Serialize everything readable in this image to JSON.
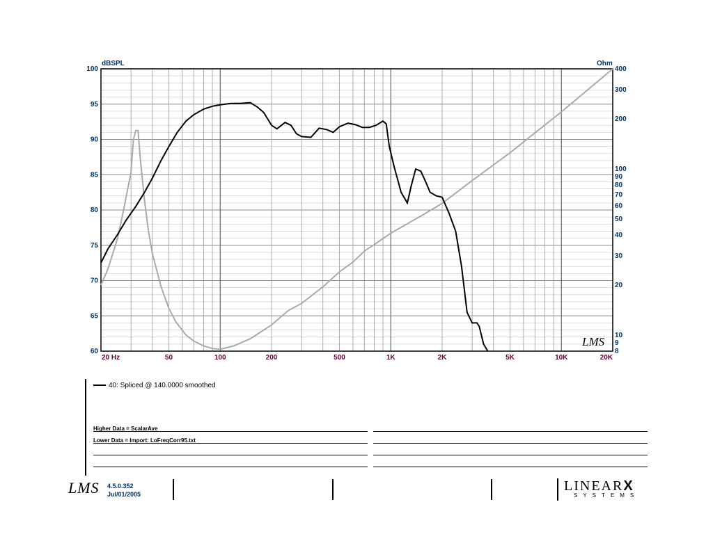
{
  "chart_data": {
    "type": "line",
    "x_scale": "log",
    "xlim": [
      20,
      20000
    ],
    "x_tick_labels": [
      "20  Hz",
      "50",
      "100",
      "200",
      "500",
      "1K",
      "2K",
      "5K",
      "10K",
      "20K"
    ],
    "x_tick_values": [
      20,
      50,
      100,
      200,
      500,
      1000,
      2000,
      5000,
      10000,
      20000
    ],
    "left_axis": {
      "label": "dBSPL",
      "ylim": [
        60,
        100
      ],
      "ticks": [
        60,
        65,
        70,
        75,
        80,
        85,
        90,
        95,
        100
      ]
    },
    "right_axis": {
      "label": "Ohm",
      "scale": "log",
      "ylim": [
        8,
        400
      ],
      "ticks": [
        8,
        9,
        10,
        20,
        30,
        40,
        50,
        60,
        70,
        80,
        90,
        100,
        200,
        300,
        400
      ]
    },
    "grid": true,
    "series": [
      {
        "name": "40: Spliced @ 140.0000 smoothed",
        "axis": "left",
        "color": "#000000",
        "x": [
          20,
          22,
          25,
          28,
          32,
          36,
          40,
          45,
          50,
          56,
          63,
          70,
          80,
          90,
          100,
          115,
          130,
          150,
          165,
          180,
          200,
          215,
          240,
          260,
          280,
          300,
          340,
          380,
          420,
          460,
          500,
          560,
          620,
          680,
          750,
          820,
          900,
          940,
          980,
          1050,
          1150,
          1250,
          1320,
          1400,
          1500,
          1600,
          1700,
          1850,
          2000,
          2200,
          2400,
          2600,
          2800,
          3000,
          3200,
          3300,
          3500,
          3600,
          3700,
          3800,
          4000
        ],
        "y": [
          72.5,
          74.5,
          76.5,
          78.5,
          80.5,
          82.5,
          84.5,
          87.0,
          89.0,
          91.0,
          92.6,
          93.5,
          94.3,
          94.7,
          94.9,
          95.1,
          95.1,
          95.2,
          94.6,
          93.8,
          92.0,
          91.5,
          92.4,
          92.0,
          90.8,
          90.4,
          90.3,
          91.6,
          91.4,
          91.0,
          91.8,
          92.3,
          92.1,
          91.7,
          91.7,
          92.0,
          92.6,
          92.2,
          89.0,
          86.0,
          82.5,
          81.0,
          83.5,
          85.8,
          85.5,
          84.0,
          82.5,
          82.0,
          81.8,
          79.5,
          77.0,
          72.0,
          65.5,
          64.0,
          64.0,
          63.5,
          61.0,
          60.5,
          59.8,
          59.5,
          59.0
        ]
      },
      {
        "name": "",
        "axis": "right",
        "color": "#aaaaaa",
        "x": [
          20,
          22,
          25,
          27,
          30,
          31,
          32,
          33,
          34,
          36,
          38,
          40,
          45,
          50,
          55,
          63,
          70,
          80,
          90,
          100,
          120,
          150,
          200,
          250,
          300,
          400,
          500,
          600,
          700,
          800,
          1000,
          1500,
          2000,
          3000,
          5000,
          10000,
          20000
        ],
        "y": [
          20,
          25,
          38,
          55,
          95,
          150,
          170,
          170,
          115,
          65,
          42,
          31,
          19.5,
          14.5,
          12.0,
          10.0,
          9.2,
          8.6,
          8.3,
          8.2,
          8.6,
          9.5,
          11.5,
          14.0,
          15.5,
          19.5,
          24,
          27.5,
          32,
          35,
          41,
          52,
          62,
          85,
          125,
          220,
          400
        ]
      }
    ]
  },
  "legend": {
    "entry": "40: Spliced @ 140.0000 smoothed"
  },
  "notes": {
    "higher": "Higher Data = ScalarAve",
    "lower": "Lower  Data = Import: LoFreqCorr95.txt"
  },
  "footer": {
    "version": "4.5.0.352",
    "date": "Jul/01/2005",
    "logo": "LMS",
    "brand_main": "LINEAR",
    "brand_x": "X",
    "brand_sub": "SYSTEMS"
  }
}
